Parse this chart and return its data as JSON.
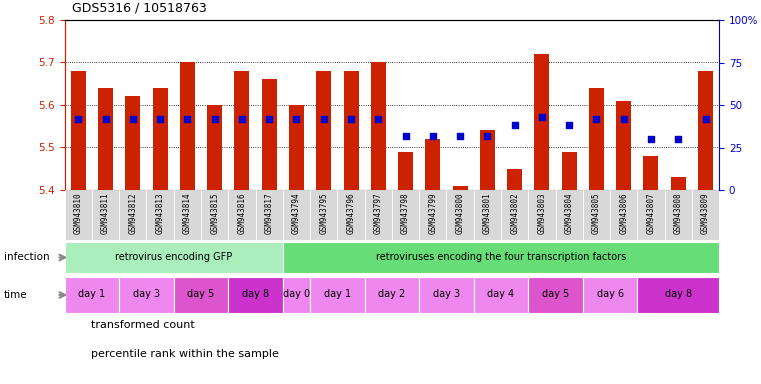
{
  "title": "GDS5316 / 10518763",
  "samples": [
    "GSM943810",
    "GSM943811",
    "GSM943812",
    "GSM943813",
    "GSM943814",
    "GSM943815",
    "GSM943816",
    "GSM943817",
    "GSM943794",
    "GSM943795",
    "GSM943796",
    "GSM943797",
    "GSM943798",
    "GSM943799",
    "GSM943800",
    "GSM943801",
    "GSM943802",
    "GSM943803",
    "GSM943804",
    "GSM943805",
    "GSM943806",
    "GSM943807",
    "GSM943808",
    "GSM943809"
  ],
  "transformed_count": [
    5.68,
    5.64,
    5.62,
    5.64,
    5.7,
    5.6,
    5.68,
    5.66,
    5.6,
    5.68,
    5.68,
    5.7,
    5.49,
    5.52,
    5.41,
    5.54,
    5.45,
    5.72,
    5.49,
    5.64,
    5.61,
    5.48,
    5.43,
    5.68
  ],
  "percentile_rank": [
    42,
    42,
    42,
    42,
    42,
    42,
    42,
    42,
    42,
    42,
    42,
    42,
    32,
    32,
    32,
    32,
    38,
    43,
    38,
    42,
    42,
    30,
    30,
    42
  ],
  "ylim_left": [
    5.4,
    5.8
  ],
  "ylim_right": [
    0,
    100
  ],
  "yticks_left": [
    5.4,
    5.5,
    5.6,
    5.7,
    5.8
  ],
  "yticks_right": [
    0,
    25,
    50,
    75,
    100
  ],
  "ytick_labels_right": [
    "0",
    "25",
    "50",
    "75",
    "100%"
  ],
  "bar_color": "#cc2200",
  "dot_color": "#0000cc",
  "bar_bottom": 5.4,
  "infection_groups": [
    {
      "label": "retrovirus encoding GFP",
      "start": 0,
      "end": 8,
      "color": "#aaeebb"
    },
    {
      "label": "retroviruses encoding the four transcription factors",
      "start": 8,
      "end": 24,
      "color": "#66dd77"
    }
  ],
  "time_groups": [
    {
      "label": "day 1",
      "start": 0,
      "end": 2,
      "color": "#ee88ee"
    },
    {
      "label": "day 3",
      "start": 2,
      "end": 4,
      "color": "#ee88ee"
    },
    {
      "label": "day 5",
      "start": 4,
      "end": 6,
      "color": "#dd55cc"
    },
    {
      "label": "day 8",
      "start": 6,
      "end": 8,
      "color": "#cc33cc"
    },
    {
      "label": "day 0",
      "start": 8,
      "end": 9,
      "color": "#ee88ee"
    },
    {
      "label": "day 1",
      "start": 9,
      "end": 11,
      "color": "#ee88ee"
    },
    {
      "label": "day 2",
      "start": 11,
      "end": 13,
      "color": "#ee88ee"
    },
    {
      "label": "day 3",
      "start": 13,
      "end": 15,
      "color": "#ee88ee"
    },
    {
      "label": "day 4",
      "start": 15,
      "end": 17,
      "color": "#ee88ee"
    },
    {
      "label": "day 5",
      "start": 17,
      "end": 19,
      "color": "#dd55cc"
    },
    {
      "label": "day 6",
      "start": 19,
      "end": 21,
      "color": "#ee88ee"
    },
    {
      "label": "day 8",
      "start": 21,
      "end": 24,
      "color": "#cc33cc"
    }
  ],
  "legend_items": [
    {
      "label": "transformed count",
      "color": "#cc2200"
    },
    {
      "label": "percentile rank within the sample",
      "color": "#0000cc"
    }
  ],
  "background_color": "#ffffff",
  "axis_color_left": "#cc2200",
  "axis_color_right": "#0000cc",
  "label_arrow_color": "#888888",
  "xticklabel_bg": "#dddddd"
}
